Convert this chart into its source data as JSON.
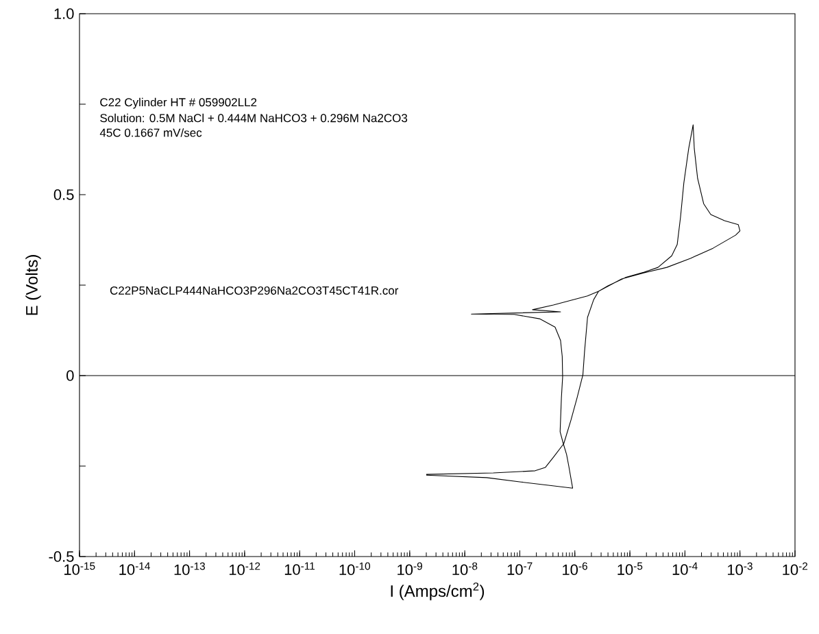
{
  "chart_data": {
    "type": "line",
    "xlabel": "I (Amps/cm$^{2}$)",
    "ylabel": "E (Volts)",
    "annotations": [
      "C22 Cylinder HT # 059902LL2",
      "Solution: 0.5M NaCl + 0.444M NaHCO3 + 0.296M Na2CO3",
      "45C   0.1667 mV/sec",
      "C22P5NaCLP444NaHCO3P296Na2CO3T45CT41R.cor"
    ],
    "log": "x",
    "grid": false,
    "line_style": "solid",
    "xlim": [
      1e-15,
      0.01
    ],
    "ylim": [
      -0.5,
      1.0
    ],
    "xticks": [
      {
        "value": 1e-15,
        "label": "10$^{-15}$"
      },
      {
        "value": 1e-14,
        "label": "10$^{-14}$"
      },
      {
        "value": 1e-13,
        "label": "10$^{-13}$"
      },
      {
        "value": 1e-12,
        "label": "10$^{-12}$"
      },
      {
        "value": 1e-11,
        "label": "10$^{-11}$"
      },
      {
        "value": 1e-10,
        "label": "10$^{-10}$"
      },
      {
        "value": 1e-09,
        "label": "10$^{-9}$"
      },
      {
        "value": 1e-08,
        "label": "10$^{-8}$"
      },
      {
        "value": 1e-07,
        "label": "10$^{-7}$"
      },
      {
        "value": 1e-06,
        "label": "10$^{-6}$"
      },
      {
        "value": 1e-05,
        "label": "10$^{-5}$"
      },
      {
        "value": 0.0001,
        "label": "10$^{-4}$"
      },
      {
        "value": 0.001,
        "label": "10$^{-3}$"
      },
      {
        "value": 0.01,
        "label": "10$^{-2}$"
      }
    ],
    "yticks": [
      {
        "value": -0.5,
        "label": "-0.5"
      },
      {
        "value": -0.25,
        "label": null
      },
      {
        "value": 0,
        "label": "0"
      },
      {
        "value": 0.25,
        "label": null
      },
      {
        "value": 0.5,
        "label": "0.5"
      },
      {
        "value": 0.75,
        "label": null
      },
      {
        "value": 1.0,
        "label": "1.0"
      }
    ],
    "ref_lines": [
      {
        "axis": "y",
        "value": 0,
        "color": "#000000"
      }
    ],
    "series": [
      {
        "color": "#000000",
        "x": [
          2e-09,
          3.3e-08,
          1.9e-07,
          2.9e-07,
          4.1e-07,
          6.3e-07,
          8.5e-07,
          1.1e-06,
          1.4e-06,
          1.5e-06,
          1.7e-06,
          2.2e-06,
          2.7e-06,
          4e-06,
          8.3e-06,
          1.82e-05,
          3.24e-05,
          5.75e-05,
          7.24e-05,
          8.32e-05,
          9.55e-05,
          0.000117,
          0.000141,
          0.000148,
          0.00017,
          0.000219,
          0.000295,
          0.000525,
          0.000933,
          0.001,
          0.000832,
          0.000324,
          0.000126,
          4.68e-05,
          1.82e-05,
          7.08e-06,
          2.69e-06,
          1.7e-06,
          4.07e-07,
          1.7e-07,
          5.5e-07,
          1.32e-08,
          7.94e-08,
          2.29e-07,
          4.37e-07,
          5.5e-07,
          5.9e-07,
          6e-07,
          5.7e-07,
          5.4e-07,
          6.17e-07,
          7.08e-07,
          7.76e-07,
          9.12e-07,
          3.31e-07,
          1.05e-07,
          2.51e-08,
          2e-09
        ],
        "values": [
          -0.273,
          -0.269,
          -0.263,
          -0.254,
          -0.225,
          -0.188,
          -0.123,
          -0.061,
          0.002,
          0.066,
          0.161,
          0.21,
          0.233,
          0.248,
          0.271,
          0.286,
          0.299,
          0.331,
          0.362,
          0.438,
          0.532,
          0.627,
          0.693,
          0.627,
          0.545,
          0.475,
          0.445,
          0.428,
          0.417,
          0.4,
          0.388,
          0.352,
          0.324,
          0.299,
          0.284,
          0.267,
          0.233,
          0.22,
          0.195,
          0.182,
          0.176,
          0.17,
          0.169,
          0.157,
          0.134,
          0.097,
          0.053,
          -0.004,
          -0.061,
          -0.155,
          -0.188,
          -0.218,
          -0.25,
          -0.311,
          -0.303,
          -0.294,
          -0.282,
          -0.275
        ]
      }
    ]
  }
}
